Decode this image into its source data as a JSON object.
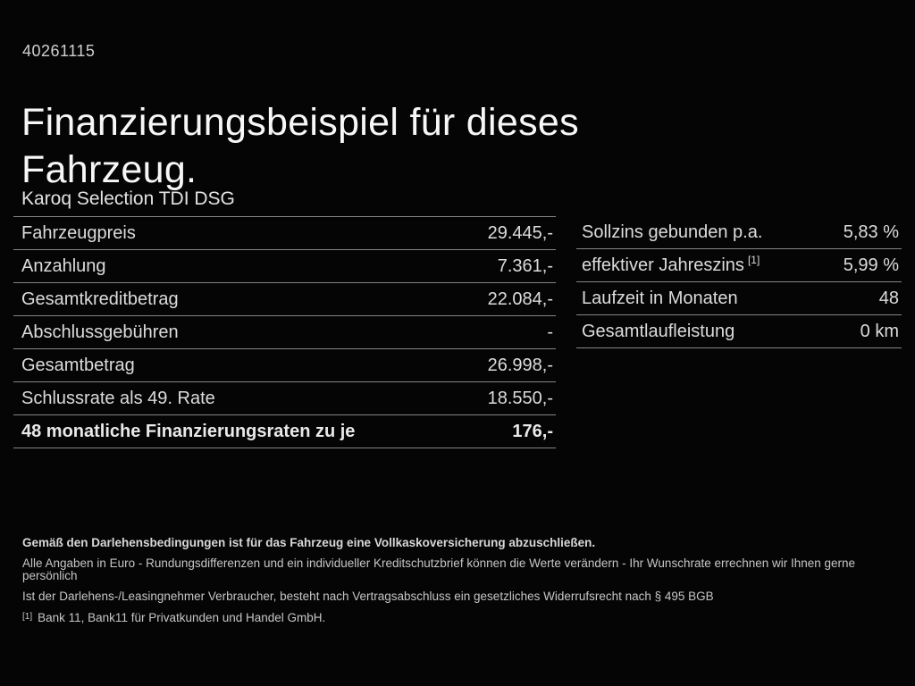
{
  "page": {
    "id_number": "40261115",
    "title": "Finanzierungsbeispiel für dieses Fahrzeug.",
    "vehicle_name": "Karoq Selection TDI DSG"
  },
  "left_table": {
    "rows": [
      {
        "label": "Fahrzeugpreis",
        "value": "29.445,-"
      },
      {
        "label": "Anzahlung",
        "value": "7.361,-"
      },
      {
        "label": "Gesamtkreditbetrag",
        "value": "22.084,-"
      },
      {
        "label": "Abschlussgebühren",
        "value": "-"
      },
      {
        "label": "Gesamtbetrag",
        "value": "26.998,-"
      },
      {
        "label": "Schlussrate als 49. Rate",
        "value": "18.550,-"
      },
      {
        "label": "48 monatliche Finanzierungsraten zu je",
        "value": "176,-",
        "bold": true
      }
    ]
  },
  "right_table": {
    "rows": [
      {
        "label": "Sollzins gebunden p.a.",
        "value": "5,83 %"
      },
      {
        "label": "effektiver Jahreszins",
        "sup": "[1]",
        "value": "5,99 %"
      },
      {
        "label": "Laufzeit in Monaten",
        "value": "48"
      },
      {
        "label": "Gesamtlaufleistung",
        "value": "0 km"
      }
    ]
  },
  "footer": {
    "line1": "Gemäß den Darlehensbedingungen ist für das Fahrzeug eine Vollkaskoversicherung abzuschließen.",
    "line2": "Alle Angaben in Euro - Rundungsdifferenzen und ein individueller Kreditschutzbrief können die Werte verändern - Ihr Wunschrate errechnen wir Ihnen gerne persönlich",
    "line3": "Ist der Darlehens-/Leasingnehmer Verbraucher, besteht nach Vertragsabschluss ein gesetzliches Widerrufsrecht nach § 495 BGB",
    "footnote_marker": "[1]",
    "footnote_text": "Bank 11, Bank11 für Privatkunden und Handel GmbH."
  },
  "colors": {
    "background": "#050505",
    "text_primary": "#f7f7f7",
    "text_secondary": "#dcdcdc",
    "divider": "#858585"
  }
}
